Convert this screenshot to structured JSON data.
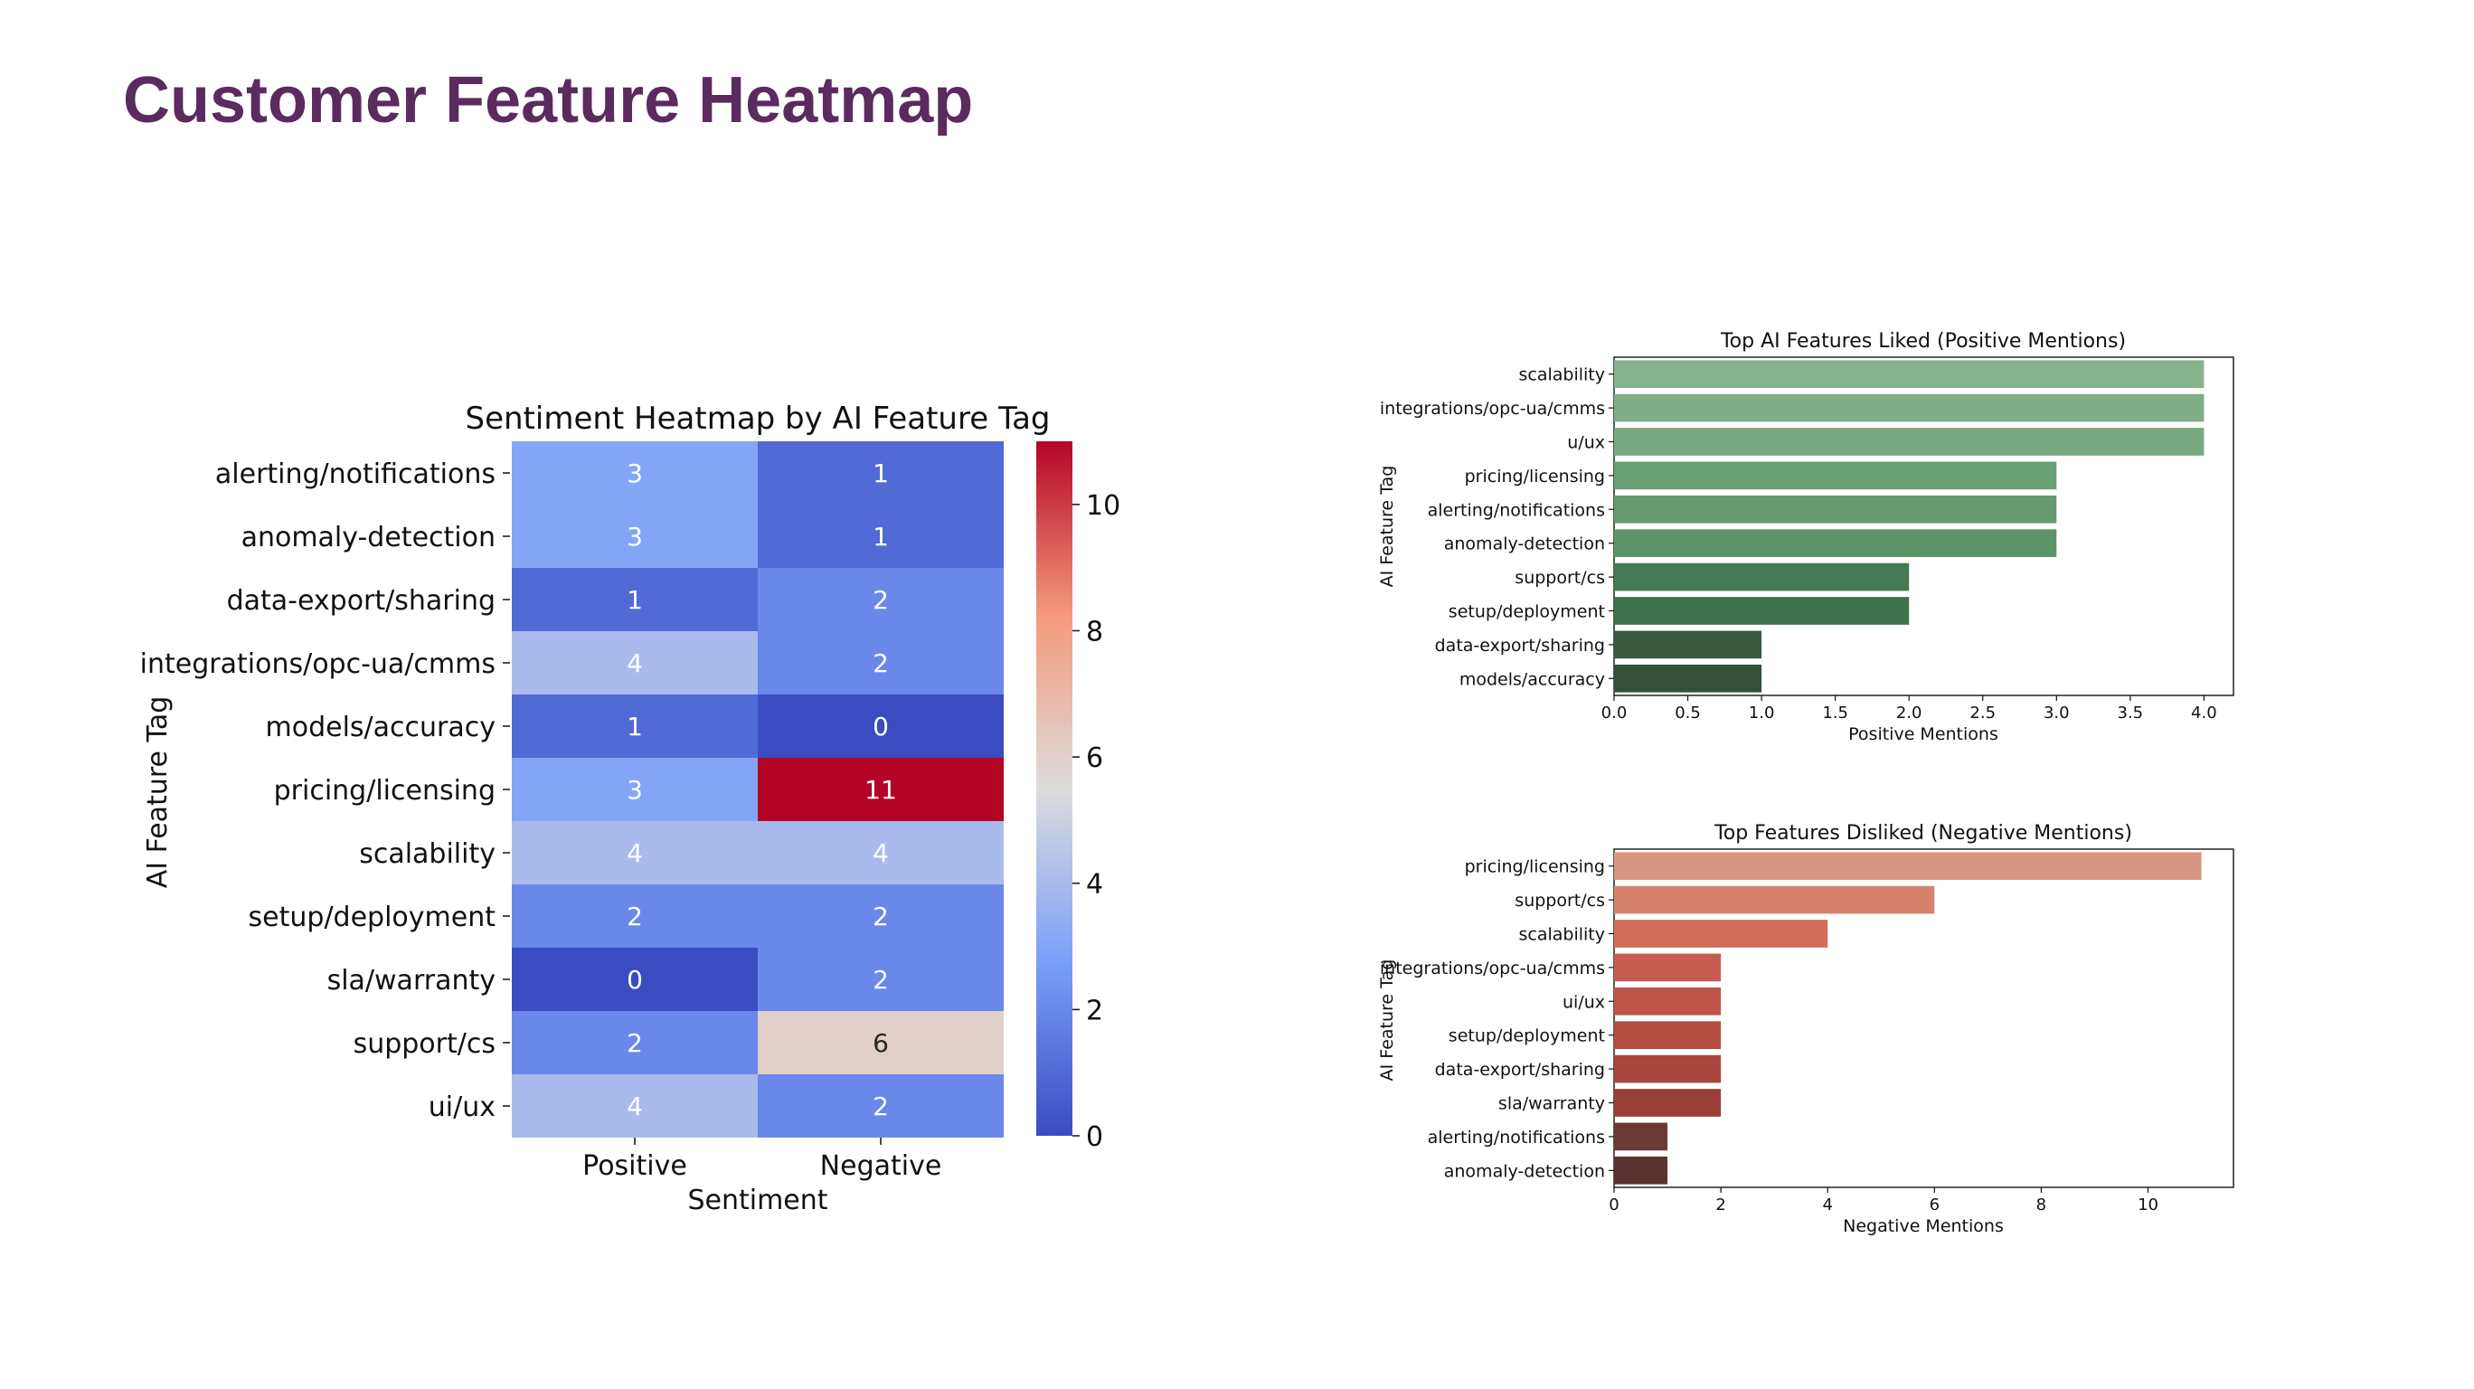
{
  "slide": {
    "title": "Customer Feature Heatmap"
  },
  "chart_data": [
    {
      "type": "heatmap",
      "title": "Sentiment Heatmap by AI Feature Tag",
      "xlabel": "Sentiment",
      "ylabel": "AI Feature Tag",
      "columns": [
        "Positive",
        "Negative"
      ],
      "rows": [
        "alerting/notifications",
        "anomaly-detection",
        "data-export/sharing",
        "integrations/opc-ua/cmms",
        "models/accuracy",
        "pricing/licensing",
        "scalability",
        "setup/deployment",
        "sla/warranty",
        "support/cs",
        "ui/ux"
      ],
      "values": [
        [
          3,
          1
        ],
        [
          3,
          1
        ],
        [
          1,
          2
        ],
        [
          4,
          2
        ],
        [
          1,
          0
        ],
        [
          3,
          11
        ],
        [
          4,
          4
        ],
        [
          2,
          2
        ],
        [
          0,
          2
        ],
        [
          2,
          6
        ],
        [
          4,
          2
        ]
      ],
      "colormap": "coolwarm",
      "colorbar": {
        "range": [
          0,
          11
        ],
        "ticks": [
          0,
          2,
          4,
          6,
          8,
          10
        ]
      }
    },
    {
      "type": "bar",
      "orientation": "horizontal",
      "title": "Top AI Features Liked (Positive Mentions)",
      "xlabel": "Positive Mentions",
      "ylabel": "AI Feature Tag",
      "categories": [
        "scalability",
        "integrations/opc-ua/cmms",
        "u/ux",
        "pricing/licensing",
        "alerting/notifications",
        "anomaly-detection",
        "support/cs",
        "setup/deployment",
        "data-export/sharing",
        "models/accuracy"
      ],
      "values": [
        4,
        4,
        4,
        3,
        3,
        3,
        2,
        2,
        1,
        1
      ],
      "colors": [
        "#86b28c",
        "#7fad86",
        "#78a880",
        "#6b9f74",
        "#649a6e",
        "#5d9467",
        "#457a53",
        "#3e714c",
        "#3a5a41",
        "#34503a"
      ],
      "xlim": [
        0,
        4.2
      ],
      "xticks": [
        0.0,
        0.5,
        1.0,
        1.5,
        2.0,
        2.5,
        3.0,
        3.5,
        4.0
      ]
    },
    {
      "type": "bar",
      "orientation": "horizontal",
      "title": "Top Features Disliked (Negative Mentions)",
      "xlabel": "Negative Mentions",
      "ylabel": "AI Feature Tag",
      "categories": [
        "pricing/licensing",
        "support/cs",
        "scalability",
        "integrations/opc-ua/cmms",
        "ui/ux",
        "setup/deployment",
        "data-export/sharing",
        "sla/warranty",
        "alerting/notifications",
        "anomaly-detection"
      ],
      "values": [
        11,
        6,
        4,
        2,
        2,
        2,
        2,
        2,
        1,
        1
      ],
      "colors": [
        "#d99683",
        "#d7826f",
        "#d06d5d",
        "#c65d50",
        "#be5549",
        "#b34d42",
        "#a8463d",
        "#984038",
        "#6a3b35",
        "#5a332f"
      ],
      "xlim": [
        0,
        11.6
      ],
      "xticks": [
        0,
        2,
        4,
        6,
        8,
        10
      ]
    }
  ]
}
